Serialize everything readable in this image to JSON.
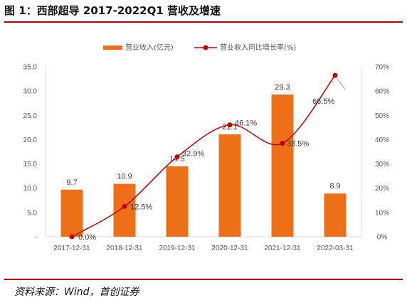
{
  "figure": {
    "title": "图 1：西部超导 2017-2022Q1 营收及增速",
    "source": "资料来源：Wind，首创证券"
  },
  "chart_data": {
    "type": "bar",
    "categories": [
      "2017-12-31",
      "2018-12-31",
      "2019-12-31",
      "2020-12-31",
      "2021-12-31",
      "2022-03-31"
    ],
    "series": [
      {
        "name": "营业收入(亿元)",
        "type": "bar",
        "axis": "left",
        "color": "#ed7019",
        "values": [
          9.7,
          10.9,
          14.5,
          21.1,
          29.3,
          8.9
        ],
        "labels": [
          "9.7",
          "10.9",
          "14.5",
          "21.1",
          "29.3",
          "8.9"
        ]
      },
      {
        "name": "营业收入同比增长率(%)",
        "type": "line",
        "axis": "right",
        "color": "#c00000",
        "values": [
          0.0,
          12.5,
          32.9,
          46.1,
          38.5,
          66.5
        ],
        "labels": [
          "0.0%",
          "12.5%",
          "32.9%",
          "46.1%",
          "38.5%",
          "66.5%"
        ]
      }
    ],
    "y_left": {
      "ylim": [
        0,
        35
      ],
      "ticks": [
        "-",
        "5.0",
        "10.0",
        "15.0",
        "20.0",
        "25.0",
        "30.0",
        "35.0"
      ]
    },
    "y_right": {
      "ylim": [
        0,
        70
      ],
      "ticks": [
        "0%",
        "10%",
        "20%",
        "30%",
        "40%",
        "50%",
        "60%",
        "70%"
      ]
    },
    "legend": {
      "position": "top"
    },
    "grid": false
  }
}
